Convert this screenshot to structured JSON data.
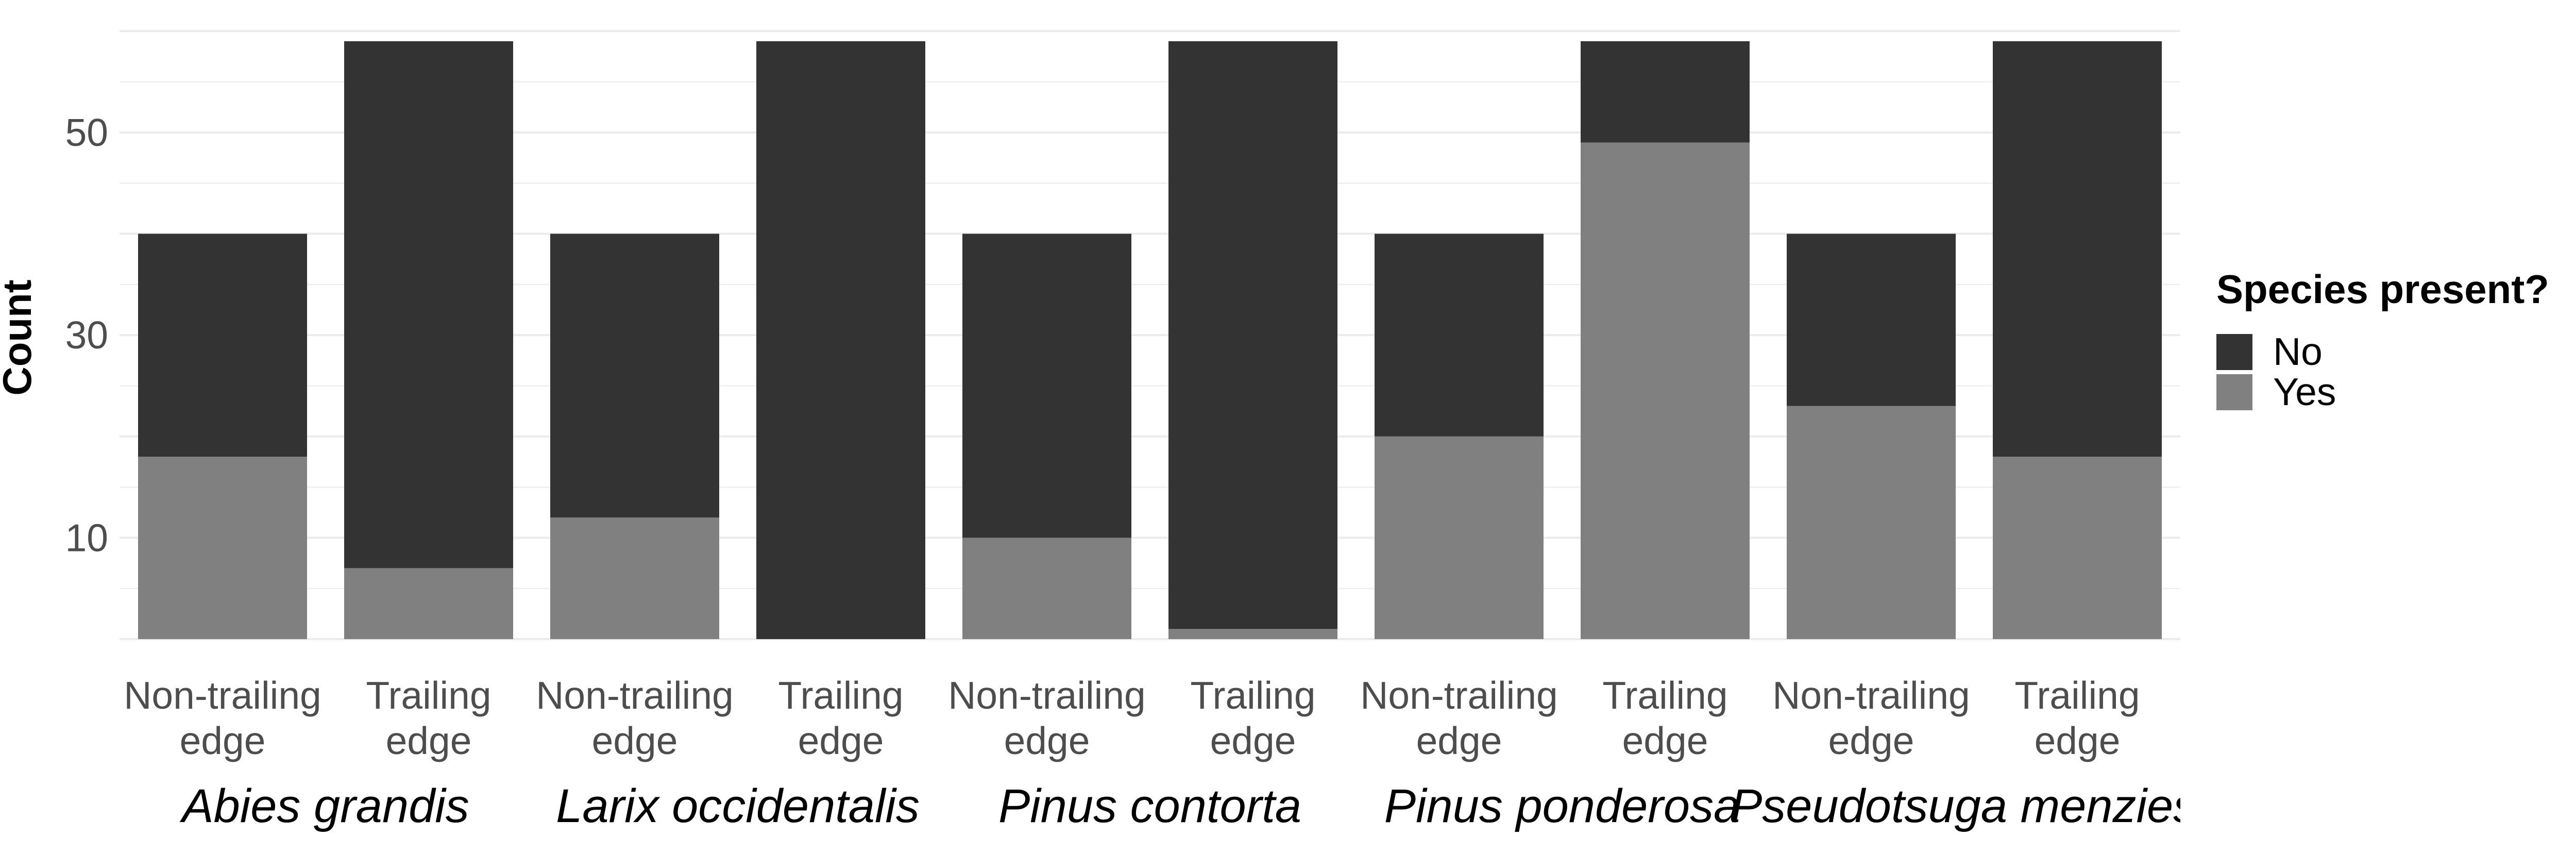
{
  "chart_data": {
    "type": "bar",
    "stacked": true,
    "ylabel": "Count",
    "ylim": [
      0,
      60
    ],
    "yticks": [
      10,
      30,
      50
    ],
    "grid": true,
    "legend": {
      "title": "Species present?",
      "position": "right",
      "entries": [
        "No",
        "Yes"
      ]
    },
    "colors": {
      "No": "#333333",
      "Yes": "#808080",
      "grid": "#ebebeb",
      "text": "#4d4d4d"
    },
    "groups": [
      "Abies grandis",
      "Larix occidentalis",
      "Pinus contorta",
      "Pinus ponderosa",
      "Pseudotsuga menziesii"
    ],
    "categories": [
      "Non-trailing edge",
      "Trailing edge"
    ],
    "category_lines": [
      [
        "Non-trailing",
        "edge"
      ],
      [
        "Trailing",
        "edge"
      ]
    ],
    "series": [
      {
        "name": "Yes",
        "values": [
          [
            18,
            7
          ],
          [
            12,
            0
          ],
          [
            10,
            1
          ],
          [
            20,
            49
          ],
          [
            23,
            18
          ]
        ]
      },
      {
        "name": "No",
        "values": [
          [
            22,
            52
          ],
          [
            28,
            59
          ],
          [
            30,
            58
          ],
          [
            20,
            10
          ],
          [
            17,
            41
          ]
        ]
      }
    ]
  }
}
